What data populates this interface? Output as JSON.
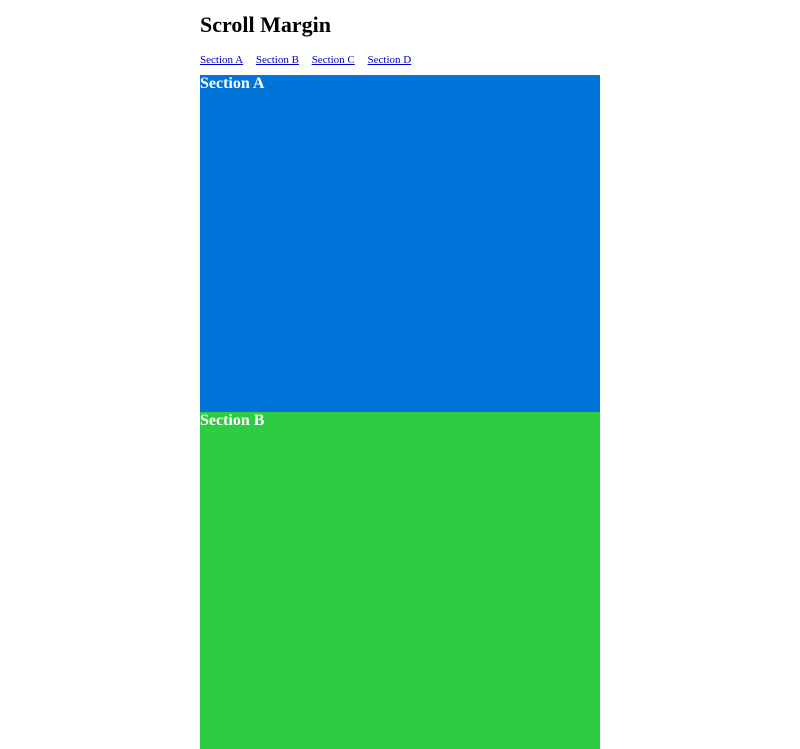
{
  "title": "Scroll Margin",
  "nav": [
    "Section A",
    "Section B",
    "Section C",
    "Section D"
  ],
  "sections": [
    {
      "label": "Section A",
      "color": "#0074d9"
    },
    {
      "label": "Section B",
      "color": "#2ecc40"
    }
  ]
}
